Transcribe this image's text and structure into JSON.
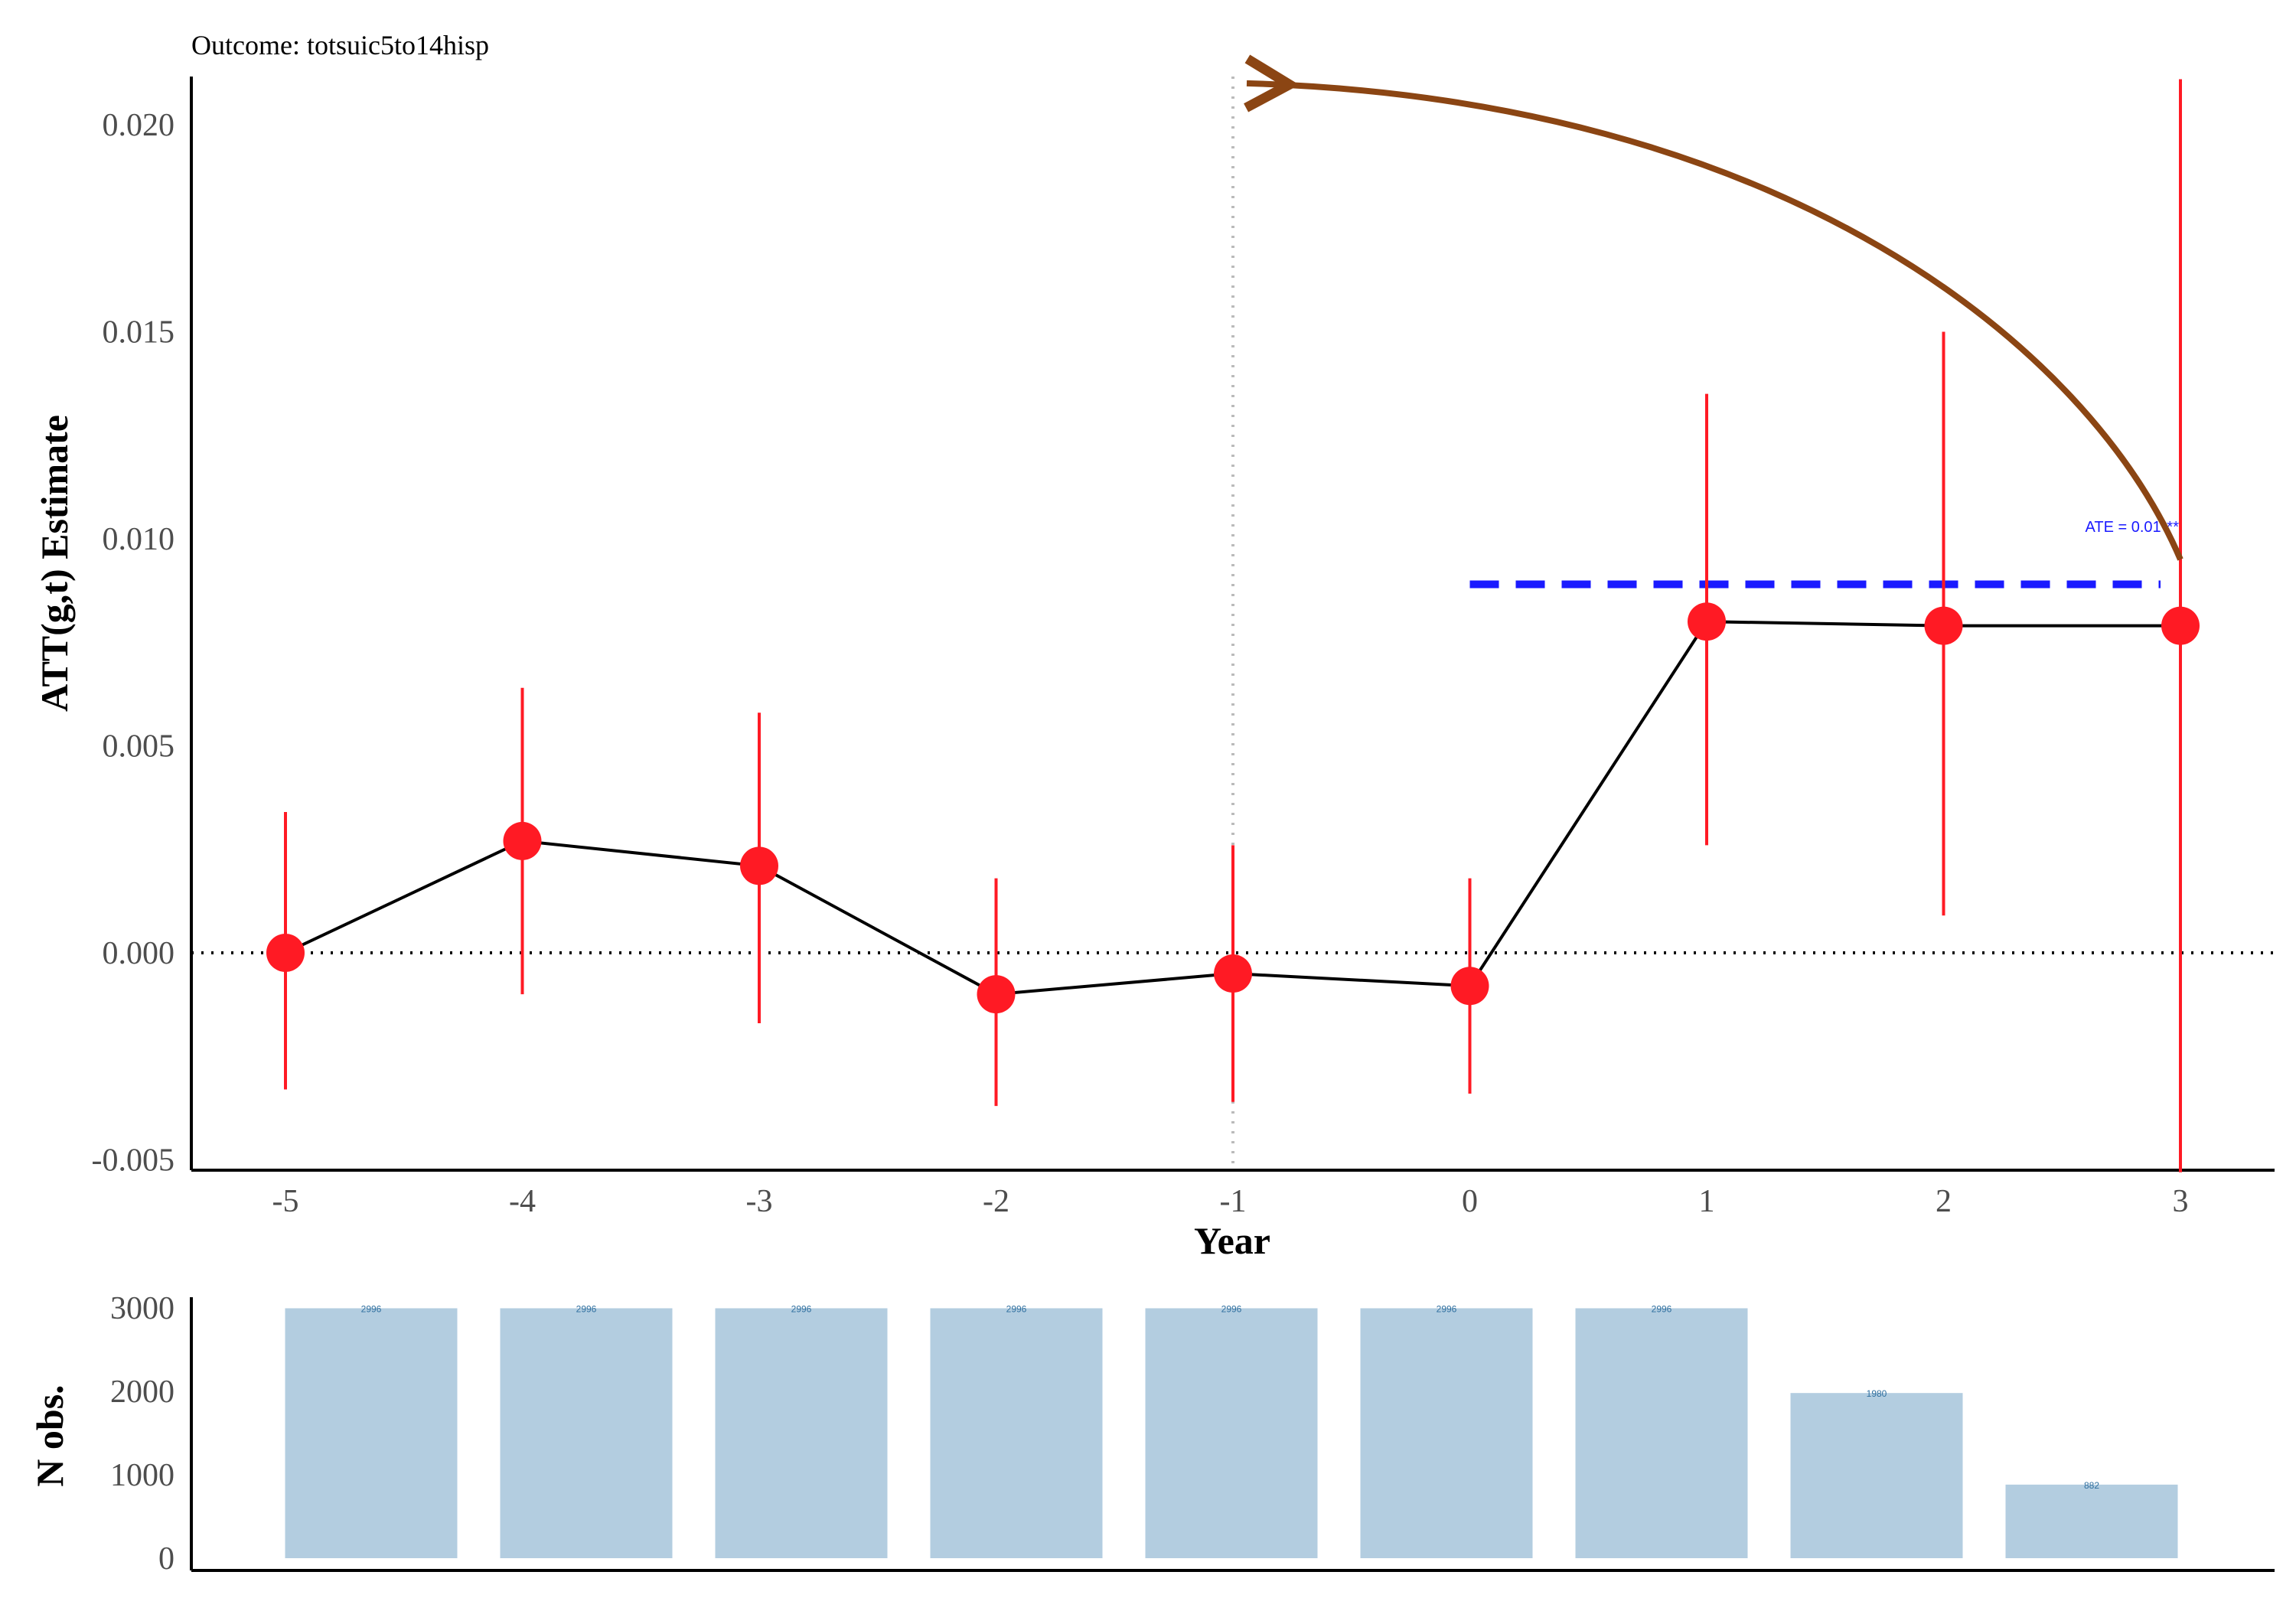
{
  "colors": {
    "point": "#ff1a24",
    "line": "#000000",
    "ate": "#1a1aff",
    "bar": "#b3cde0",
    "bar_label": "#2f6f9f",
    "arrow": "#8b4513",
    "ref_line": "#000000",
    "vline": "#bbbbbb"
  },
  "chart_data": [
    {
      "type": "line",
      "title": "Outcome: totsuic5to14hisp",
      "xlabel": "Year",
      "ylabel": "ATT(g,t) Estimate",
      "x": [
        -5,
        -4,
        -3,
        -2,
        -1,
        0,
        1,
        2,
        3
      ],
      "x_tick_labels": [
        "-5",
        "-4",
        "-3",
        "-2",
        "-1",
        "0",
        "1",
        "2",
        "3"
      ],
      "y_tick_values": [
        -0.005,
        0.0,
        0.005,
        0.01,
        0.015,
        0.02
      ],
      "y_tick_labels": [
        "-0.005",
        "0.000",
        "0.005",
        "0.010",
        "0.015",
        "0.020"
      ],
      "ylim": [
        -0.0053,
        0.0211
      ],
      "xlim": [
        -5.4,
        3.4
      ],
      "series": [
        {
          "values": [
            0.0,
            0.0027,
            0.0021,
            -0.001,
            -0.0005,
            -0.0008,
            0.008,
            0.0079,
            0.0079
          ],
          "ci_lower": [
            -0.0033,
            -0.001,
            -0.0017,
            -0.0037,
            -0.0036,
            -0.0034,
            0.0026,
            0.0009,
            -0.0053
          ],
          "ci_upper": [
            0.0034,
            0.0064,
            0.0058,
            0.0018,
            0.0026,
            0.0018,
            0.0135,
            0.015,
            0.0211
          ]
        }
      ],
      "reference_lines": {
        "horizontal_y": 0.0,
        "vertical_x": -1
      },
      "ate": {
        "label": "ATE = 0.01***",
        "value": 0.0089,
        "x_start": 0,
        "x_end": 3
      },
      "annotation_arrow": {
        "from": {
          "x": 3,
          "y": 0.0095
        },
        "to": {
          "x": -1,
          "y": 0.021
        }
      },
      "grid": false
    },
    {
      "type": "bar",
      "ylabel": "N obs.",
      "categories": [
        -5,
        -4,
        -3,
        -2,
        -1,
        0,
        1,
        2,
        3
      ],
      "values": [
        2996,
        2996,
        2996,
        2996,
        2996,
        2996,
        2996,
        1980,
        882
      ],
      "value_labels": [
        "2996",
        "2996",
        "2996",
        "2996",
        "2996",
        "2996",
        "2996",
        "1980",
        "882"
      ],
      "y_tick_values": [
        0,
        1000,
        2000,
        3000
      ],
      "y_tick_labels": [
        "0",
        "1000",
        "2000",
        "3000"
      ],
      "ylim": [
        -150,
        3150
      ],
      "grid": false
    }
  ]
}
